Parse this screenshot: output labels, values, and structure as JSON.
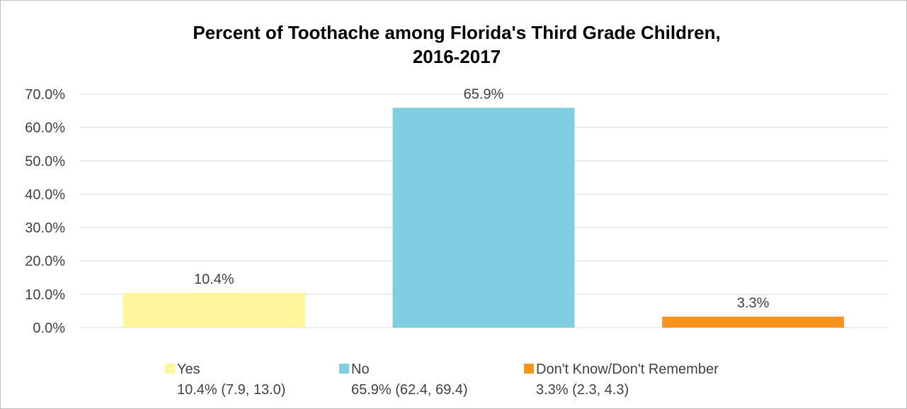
{
  "chart_data": {
    "type": "bar",
    "title_lines": [
      "Percent of Toothache among Florida's Third Grade Children,",
      "2016-2017"
    ],
    "categories": [
      "Yes",
      "No",
      "Don't Know/Don't Remember"
    ],
    "values": [
      10.4,
      65.9,
      3.3
    ],
    "data_labels": [
      "10.4%",
      "65.9%",
      "3.3%"
    ],
    "colors": [
      "#fff59d",
      "#7fcfe0",
      "#f7941d"
    ],
    "legend": [
      {
        "name": "Yes",
        "detail": "10.4% (7.9, 13.0)"
      },
      {
        "name": "No",
        "detail": "65.9% (62.4, 69.4)"
      },
      {
        "name": "Don't Know/Don't Remember",
        "detail": "3.3% (2.3, 4.3)"
      }
    ],
    "legend_position": "bottom",
    "y_ticks": [
      "0.0%",
      "10.0%",
      "20.0%",
      "30.0%",
      "40.0%",
      "50.0%",
      "60.0%",
      "70.0%"
    ],
    "ylim": [
      0,
      70
    ],
    "grid": true
  }
}
